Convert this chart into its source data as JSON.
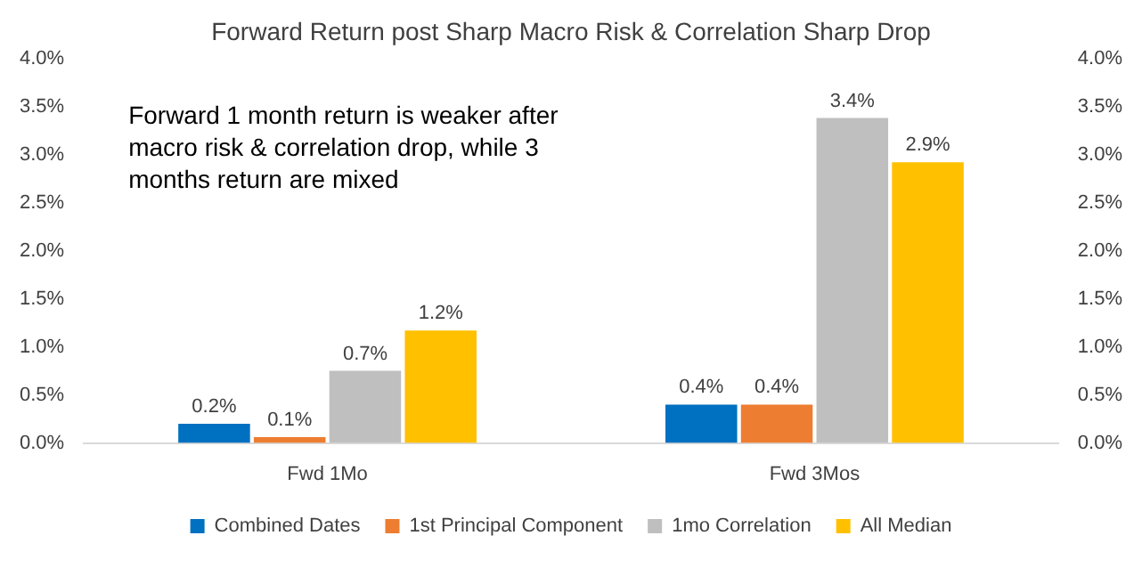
{
  "chart_data": {
    "type": "bar",
    "title": "Forward Return post Sharp Macro Risk & Correlation Sharp Drop",
    "categories": [
      "Fwd 1Mo",
      "Fwd 3Mos"
    ],
    "series": [
      {
        "name": "Combined Dates",
        "color": "#0070c0",
        "values": [
          0.2,
          0.4
        ],
        "value_labels": [
          "0.2%",
          "0.4%"
        ]
      },
      {
        "name": "1st Principal Component",
        "color": "#ed7d31",
        "values": [
          0.06,
          0.4
        ],
        "value_labels": [
          "0.1%",
          "0.4%"
        ]
      },
      {
        "name": "1mo Correlation",
        "color": "#bfbfbf",
        "values": [
          0.75,
          3.38
        ],
        "value_labels": [
          "0.7%",
          "3.4%"
        ]
      },
      {
        "name": "All Median",
        "color": "#ffc000",
        "values": [
          1.17,
          2.92
        ],
        "value_labels": [
          "1.2%",
          "2.9%"
        ]
      }
    ],
    "ylim": [
      0,
      4
    ],
    "yticks": [
      {
        "value": 0,
        "label": "0.0%"
      },
      {
        "value": 0.5,
        "label": "0.5%"
      },
      {
        "value": 1,
        "label": "1.0%"
      },
      {
        "value": 1.5,
        "label": "1.5%"
      },
      {
        "value": 2,
        "label": "2.0%"
      },
      {
        "value": 2.5,
        "label": "2.5%"
      },
      {
        "value": 3,
        "label": "3.0%"
      },
      {
        "value": 3.5,
        "label": "3.5%"
      },
      {
        "value": 4,
        "label": "4.0%"
      }
    ],
    "y2lim": [
      0,
      4
    ],
    "y2ticks": [
      {
        "value": 0,
        "label": "0.0%"
      },
      {
        "value": 0.5,
        "label": "0.5%"
      },
      {
        "value": 1,
        "label": "1.0%"
      },
      {
        "value": 1.5,
        "label": "1.5%"
      },
      {
        "value": 2,
        "label": "2.0%"
      },
      {
        "value": 2.5,
        "label": "2.5%"
      },
      {
        "value": 3,
        "label": "3.0%"
      },
      {
        "value": 3.5,
        "label": "3.5%"
      },
      {
        "value": 4,
        "label": "4.0%"
      }
    ],
    "annotations": [
      "Forward 1 month return is weaker after macro risk & correlation drop, while 3 months return are mixed"
    ],
    "legend": "bottom",
    "grid": false
  }
}
